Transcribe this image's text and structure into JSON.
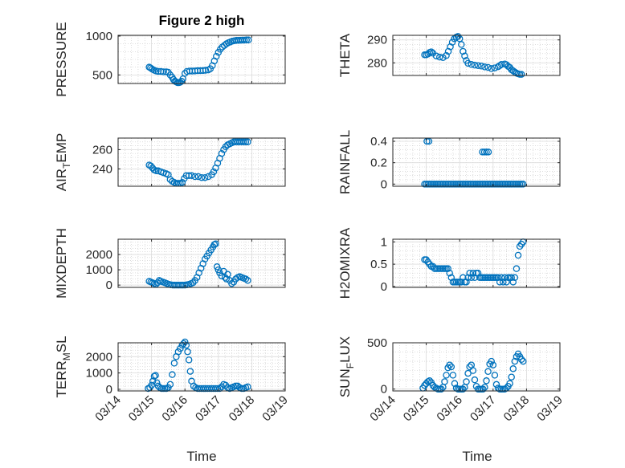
{
  "figure": {
    "title": "Figure 2 high",
    "xlabel": "Time",
    "marker_color": "#0072bd"
  },
  "chart_data": [
    {
      "type": "scatter",
      "title": "Figure 2 high",
      "ylabel": "PRESSURE",
      "ylabel_sub": "",
      "ylabel_suffix": "",
      "ylim": [
        390,
        1010
      ],
      "yticks": [
        500,
        1000
      ],
      "ytick_labels": [
        "500",
        "1000"
      ],
      "xlim": [
        0,
        5
      ],
      "xticks": [
        0,
        1,
        2,
        3,
        4,
        5
      ],
      "grid": true,
      "x": [
        0.93,
        0.97,
        1.02,
        1.08,
        1.14,
        1.2,
        1.28,
        1.36,
        1.44,
        1.5,
        1.56,
        1.62,
        1.66,
        1.7,
        1.74,
        1.78,
        1.82,
        1.86,
        1.9,
        1.94,
        2.0,
        2.06,
        2.14,
        2.22,
        2.3,
        2.38,
        2.46,
        2.54,
        2.62,
        2.7,
        2.76,
        2.82,
        2.88,
        2.94,
        3.0,
        3.06,
        3.12,
        3.18,
        3.24,
        3.3,
        3.36,
        3.42,
        3.48,
        3.54,
        3.6,
        3.66,
        3.72,
        3.78,
        3.84,
        3.9
      ],
      "y": [
        600,
        590,
        575,
        560,
        550,
        545,
        545,
        540,
        540,
        535,
        500,
        470,
        440,
        420,
        410,
        400,
        400,
        405,
        420,
        450,
        520,
        545,
        550,
        550,
        552,
        555,
        555,
        557,
        560,
        565,
        580,
        620,
        680,
        740,
        790,
        830,
        860,
        880,
        900,
        915,
        925,
        935,
        940,
        945,
        945,
        947,
        948,
        948,
        950,
        950
      ]
    },
    {
      "type": "scatter",
      "ylabel": "THETA",
      "ylabel_sub": "",
      "ylabel_suffix": "",
      "ylim": [
        274.5,
        292
      ],
      "yticks": [
        280,
        290
      ],
      "ytick_labels": [
        "280",
        "290"
      ],
      "xlim": [
        0,
        5
      ],
      "xticks": [
        0,
        1,
        2,
        3,
        4,
        5
      ],
      "grid": true,
      "x": [
        0.95,
        1.0,
        1.05,
        1.1,
        1.15,
        1.2,
        1.3,
        1.4,
        1.5,
        1.6,
        1.66,
        1.72,
        1.78,
        1.84,
        1.9,
        1.95,
        2.0,
        2.05,
        2.1,
        2.15,
        2.2,
        2.25,
        2.35,
        2.45,
        2.55,
        2.65,
        2.75,
        2.85,
        2.95,
        3.05,
        3.15,
        3.2,
        3.25,
        3.35,
        3.4,
        3.45,
        3.5,
        3.55,
        3.6,
        3.65,
        3.7,
        3.75,
        3.8,
        3.85
      ],
      "y": [
        283.5,
        283.5,
        283.8,
        284.5,
        284.8,
        284.2,
        283.0,
        282.5,
        282.3,
        283.2,
        285,
        287,
        289,
        290.5,
        291.2,
        291.5,
        290.5,
        288,
        285,
        283,
        281,
        279.8,
        279.3,
        279.0,
        278.8,
        278.6,
        278.2,
        278.0,
        277.5,
        277.8,
        278.3,
        278.8,
        279.3,
        279.5,
        279.2,
        278.5,
        278,
        277,
        276.5,
        276,
        275.5,
        275.2,
        275,
        275
      ]
    },
    {
      "type": "scatter",
      "ylabel": "AIR",
      "ylabel_sub": "T",
      "ylabel_suffix": "EMP",
      "ylim": [
        222,
        272
      ],
      "yticks": [
        240,
        260
      ],
      "ytick_labels": [
        "240",
        "260"
      ],
      "xlim": [
        0,
        5
      ],
      "xticks": [
        0,
        1,
        2,
        3,
        4,
        5
      ],
      "grid": true,
      "x": [
        0.93,
        0.98,
        1.03,
        1.08,
        1.14,
        1.2,
        1.28,
        1.36,
        1.44,
        1.5,
        1.56,
        1.62,
        1.68,
        1.74,
        1.8,
        1.86,
        1.92,
        1.98,
        2.04,
        2.12,
        2.2,
        2.3,
        2.4,
        2.5,
        2.6,
        2.7,
        2.8,
        2.86,
        2.92,
        2.98,
        3.04,
        3.1,
        3.16,
        3.22,
        3.28,
        3.34,
        3.4,
        3.46,
        3.52,
        3.58,
        3.64,
        3.7,
        3.76,
        3.82,
        3.88
      ],
      "y": [
        244,
        243,
        241,
        239,
        238,
        238,
        237,
        236,
        235,
        234,
        229,
        227,
        226,
        225,
        225,
        225,
        226,
        230,
        233,
        233,
        233,
        232,
        232,
        231,
        231,
        232,
        234,
        237,
        241,
        246,
        251,
        256,
        260,
        263,
        265,
        266,
        267,
        268,
        268,
        268,
        268,
        268,
        268,
        268,
        268
      ]
    },
    {
      "type": "scatter",
      "ylabel": "RAINFALL",
      "ylabel_sub": "",
      "ylabel_suffix": "",
      "ylim": [
        -0.02,
        0.43
      ],
      "yticks": [
        0,
        0.2,
        0.4
      ],
      "ytick_labels": [
        "0",
        "0.2",
        "0.4"
      ],
      "xlim": [
        0,
        5
      ],
      "xticks": [
        0,
        1,
        2,
        3,
        4,
        5
      ],
      "grid": true,
      "x": [
        0.95,
        1.0,
        1.05,
        1.1,
        1.15,
        1.2,
        1.25,
        1.3,
        1.35,
        1.4,
        1.45,
        1.5,
        1.55,
        1.6,
        1.65,
        1.7,
        1.75,
        1.8,
        1.85,
        1.9,
        1.95,
        2.0,
        2.05,
        2.1,
        2.15,
        2.2,
        2.25,
        2.3,
        2.35,
        2.4,
        2.45,
        2.5,
        2.55,
        2.6,
        2.65,
        2.7,
        2.75,
        2.8,
        2.85,
        2.9,
        2.95,
        3.0,
        3.05,
        3.1,
        3.15,
        3.2,
        3.25,
        3.3,
        3.35,
        3.4,
        3.45,
        3.5,
        3.55,
        3.6,
        3.65,
        3.7,
        3.75,
        3.8,
        3.85,
        3.9,
        1.02,
        1.08,
        2.68,
        2.74,
        2.8,
        2.86
      ],
      "y": [
        0,
        0,
        0,
        0,
        0,
        0,
        0,
        0,
        0,
        0,
        0,
        0,
        0,
        0,
        0,
        0,
        0,
        0,
        0,
        0,
        0,
        0,
        0,
        0,
        0,
        0,
        0,
        0,
        0,
        0,
        0,
        0,
        0,
        0,
        0,
        0,
        0,
        0,
        0,
        0,
        0,
        0,
        0,
        0,
        0,
        0,
        0,
        0,
        0,
        0,
        0,
        0,
        0,
        0,
        0,
        0,
        0,
        0,
        0,
        0,
        0.4,
        0.4,
        0.3,
        0.3,
        0.3,
        0.3
      ]
    },
    {
      "type": "scatter",
      "ylabel": "MIXDEPTH",
      "ylabel_sub": "",
      "ylabel_suffix": "",
      "ylim": [
        -150,
        3000
      ],
      "yticks": [
        0,
        1000,
        2000
      ],
      "ytick_labels": [
        "0",
        "1000",
        "2000"
      ],
      "xlim": [
        0,
        5
      ],
      "xticks": [
        0,
        1,
        2,
        3,
        4,
        5
      ],
      "grid": true,
      "x": [
        0.93,
        0.98,
        1.03,
        1.08,
        1.13,
        1.18,
        1.23,
        1.28,
        1.34,
        1.4,
        1.46,
        1.52,
        1.58,
        1.64,
        1.7,
        1.76,
        1.82,
        1.88,
        1.94,
        2.0,
        2.06,
        2.12,
        2.18,
        2.24,
        2.3,
        2.36,
        2.42,
        2.48,
        2.54,
        2.6,
        2.66,
        2.72,
        2.78,
        2.84,
        2.88,
        2.92,
        2.96,
        3.0,
        3.04,
        3.1,
        3.16,
        3.2,
        3.24,
        3.28,
        3.34,
        3.4,
        3.46,
        3.52,
        3.58,
        3.64,
        3.7,
        3.76,
        3.82,
        3.88
      ],
      "y": [
        250,
        200,
        150,
        100,
        50,
        150,
        300,
        250,
        200,
        150,
        100,
        50,
        20,
        0,
        0,
        0,
        0,
        0,
        0,
        0,
        20,
        50,
        100,
        150,
        300,
        500,
        800,
        1100,
        1400,
        1700,
        1900,
        2100,
        2300,
        2500,
        2650,
        2700,
        1200,
        1000,
        800,
        600,
        900,
        500,
        400,
        700,
        300,
        100,
        200,
        400,
        500,
        550,
        500,
        450,
        400,
        300
      ]
    },
    {
      "type": "scatter",
      "ylabel": "H2OMIXRA",
      "ylabel_sub": "",
      "ylabel_suffix": "",
      "ylim": [
        -0.02,
        1.06
      ],
      "yticks": [
        0,
        0.5,
        1
      ],
      "ytick_labels": [
        "0",
        "0.5",
        "1"
      ],
      "xlim": [
        0,
        5
      ],
      "xticks": [
        0,
        1,
        2,
        3,
        4,
        5
      ],
      "grid": true,
      "x": [
        0.95,
        1.0,
        1.05,
        1.1,
        1.15,
        1.2,
        1.25,
        1.3,
        1.35,
        1.4,
        1.45,
        1.5,
        1.55,
        1.6,
        1.65,
        1.7,
        1.75,
        1.8,
        1.85,
        1.9,
        1.95,
        2.0,
        2.05,
        2.1,
        2.15,
        2.2,
        2.25,
        2.3,
        2.35,
        2.4,
        2.45,
        2.5,
        2.55,
        2.6,
        2.65,
        2.7,
        2.75,
        2.8,
        2.85,
        2.9,
        2.95,
        3.0,
        3.05,
        3.1,
        3.15,
        3.2,
        3.25,
        3.3,
        3.35,
        3.4,
        3.45,
        3.5,
        3.55,
        3.6,
        3.65,
        3.7,
        3.75,
        3.8,
        3.85,
        3.9
      ],
      "y": [
        0.6,
        0.6,
        0.55,
        0.5,
        0.45,
        0.45,
        0.4,
        0.4,
        0.4,
        0.4,
        0.4,
        0.4,
        0.4,
        0.4,
        0.4,
        0.3,
        0.2,
        0.1,
        0.1,
        0.1,
        0.1,
        0.1,
        0.1,
        0.2,
        0.1,
        0.1,
        0.2,
        0.3,
        0.2,
        0.3,
        0.2,
        0.3,
        0.3,
        0.2,
        0.2,
        0.2,
        0.2,
        0.2,
        0.2,
        0.2,
        0.2,
        0.2,
        0.2,
        0.2,
        0.2,
        0.1,
        0.2,
        0.1,
        0.2,
        0.1,
        0.2,
        0.2,
        0.2,
        0.1,
        0.2,
        0.4,
        0.7,
        0.9,
        0.95,
        1.0
      ]
    },
    {
      "type": "scatter",
      "ylabel": "TERR",
      "ylabel_sub": "M",
      "ylabel_suffix": "SL",
      "ylim": [
        -100,
        2850
      ],
      "yticks": [
        0,
        1000,
        2000
      ],
      "ytick_labels": [
        "0",
        "1000",
        "2000"
      ],
      "xlim": [
        0,
        5
      ],
      "xticks": [
        0,
        1,
        2,
        3,
        4,
        5
      ],
      "grid": true,
      "x": [
        0.9,
        0.95,
        1.0,
        1.04,
        1.08,
        1.12,
        1.16,
        1.2,
        1.25,
        1.3,
        1.35,
        1.4,
        1.45,
        1.5,
        1.56,
        1.62,
        1.68,
        1.74,
        1.8,
        1.86,
        1.92,
        1.96,
        2.0,
        2.04,
        2.08,
        2.12,
        2.16,
        2.2,
        2.26,
        2.32,
        2.38,
        2.44,
        2.5,
        2.56,
        2.62,
        2.68,
        2.74,
        2.8,
        2.86,
        2.92,
        2.98,
        3.04,
        3.1,
        3.16,
        3.22,
        3.28,
        3.34,
        3.4,
        3.46,
        3.52,
        3.58,
        3.64,
        3.7,
        3.76,
        3.82,
        3.88
      ],
      "y": [
        50,
        100,
        250,
        500,
        800,
        850,
        400,
        200,
        100,
        50,
        50,
        50,
        50,
        100,
        300,
        900,
        1600,
        2000,
        2300,
        2500,
        2700,
        2800,
        2900,
        2700,
        2300,
        1800,
        1100,
        500,
        200,
        100,
        50,
        50,
        50,
        50,
        50,
        50,
        50,
        50,
        50,
        50,
        50,
        50,
        150,
        300,
        250,
        100,
        50,
        100,
        150,
        200,
        200,
        100,
        50,
        50,
        100,
        150
      ]
    },
    {
      "type": "scatter",
      "ylabel": "SUN",
      "ylabel_sub": "F",
      "ylabel_suffix": "LUX",
      "ylim": [
        -20,
        500
      ],
      "yticks": [
        0,
        500
      ],
      "ytick_labels": [
        "0",
        "500"
      ],
      "xlim": [
        0,
        5
      ],
      "xticks": [
        0,
        1,
        2,
        3,
        4,
        5
      ],
      "grid": true,
      "x": [
        0.9,
        0.95,
        1.0,
        1.05,
        1.1,
        1.15,
        1.2,
        1.25,
        1.3,
        1.35,
        1.4,
        1.45,
        1.5,
        1.55,
        1.6,
        1.65,
        1.7,
        1.75,
        1.8,
        1.85,
        1.9,
        1.95,
        2.0,
        2.05,
        2.1,
        2.15,
        2.2,
        2.25,
        2.3,
        2.35,
        2.4,
        2.45,
        2.5,
        2.55,
        2.6,
        2.65,
        2.7,
        2.75,
        2.8,
        2.85,
        2.9,
        2.95,
        3.0,
        3.05,
        3.1,
        3.15,
        3.2,
        3.25,
        3.3,
        3.35,
        3.4,
        3.45,
        3.5,
        3.55,
        3.6,
        3.65,
        3.7,
        3.75,
        3.8,
        3.85,
        3.9
      ],
      "y": [
        10,
        40,
        60,
        80,
        90,
        70,
        40,
        20,
        10,
        0,
        0,
        0,
        20,
        80,
        150,
        230,
        260,
        240,
        150,
        60,
        10,
        0,
        0,
        0,
        0,
        20,
        80,
        170,
        240,
        260,
        200,
        100,
        30,
        0,
        0,
        0,
        0,
        20,
        90,
        190,
        270,
        300,
        260,
        150,
        50,
        10,
        0,
        0,
        0,
        0,
        10,
        30,
        60,
        130,
        220,
        300,
        350,
        380,
        350,
        320,
        300
      ]
    }
  ],
  "xtick_labels": [
    "03/14",
    "03/15",
    "03/16",
    "03/17",
    "03/18",
    "03/19"
  ]
}
